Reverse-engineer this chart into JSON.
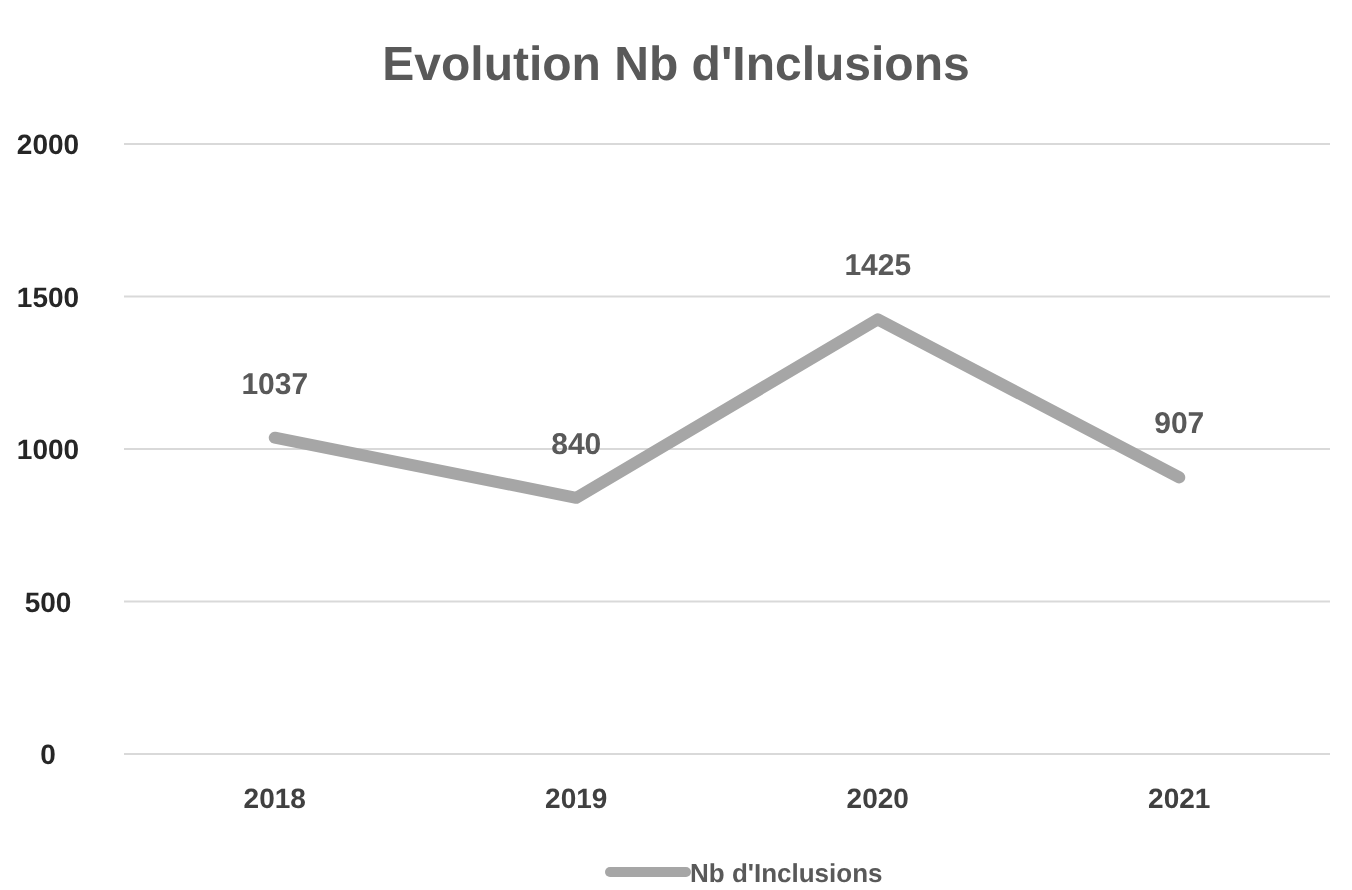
{
  "chart_data": {
    "type": "line",
    "title": "Evolution Nb d'Inclusions",
    "categories": [
      "2018",
      "2019",
      "2020",
      "2021"
    ],
    "series": [
      {
        "name": "Nb d'Inclusions",
        "color": "#a6a6a6",
        "values": [
          1037,
          840,
          1425,
          907
        ]
      }
    ],
    "ylim": [
      0,
      2000
    ],
    "yticks": [
      0,
      500,
      1000,
      1500,
      2000
    ],
    "grid": "y",
    "legend": "bottom",
    "data_labels": true,
    "marker": "none"
  }
}
